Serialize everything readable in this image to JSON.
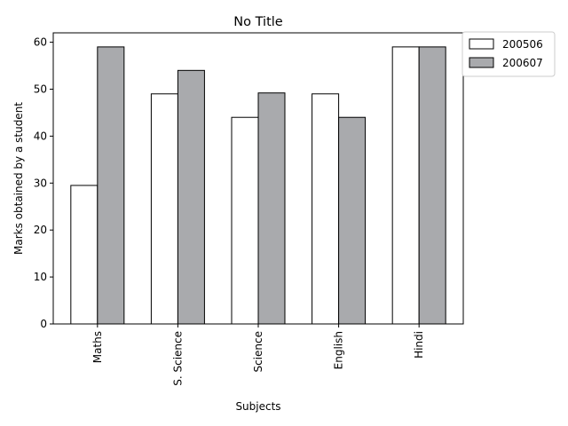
{
  "chart_data": {
    "type": "bar",
    "title": "No Title",
    "xlabel": "Subjects",
    "ylabel": "Marks obtained by a student",
    "categories": [
      "Maths",
      "S. Science",
      "Science",
      "English",
      "Hindi"
    ],
    "series": [
      {
        "name": "200506",
        "values": [
          29.5,
          49.0,
          44.0,
          49.0,
          59.0
        ],
        "color": "#ffffff"
      },
      {
        "name": "200607",
        "values": [
          59.0,
          54.0,
          49.2,
          44.0,
          59.0
        ],
        "color": "#a9aaad"
      }
    ],
    "yticks": [
      0,
      10,
      20,
      30,
      40,
      50,
      60
    ],
    "ylim": [
      0,
      62
    ],
    "grid": false,
    "legend_position": "outside top-right",
    "edge_color": "#000000"
  }
}
